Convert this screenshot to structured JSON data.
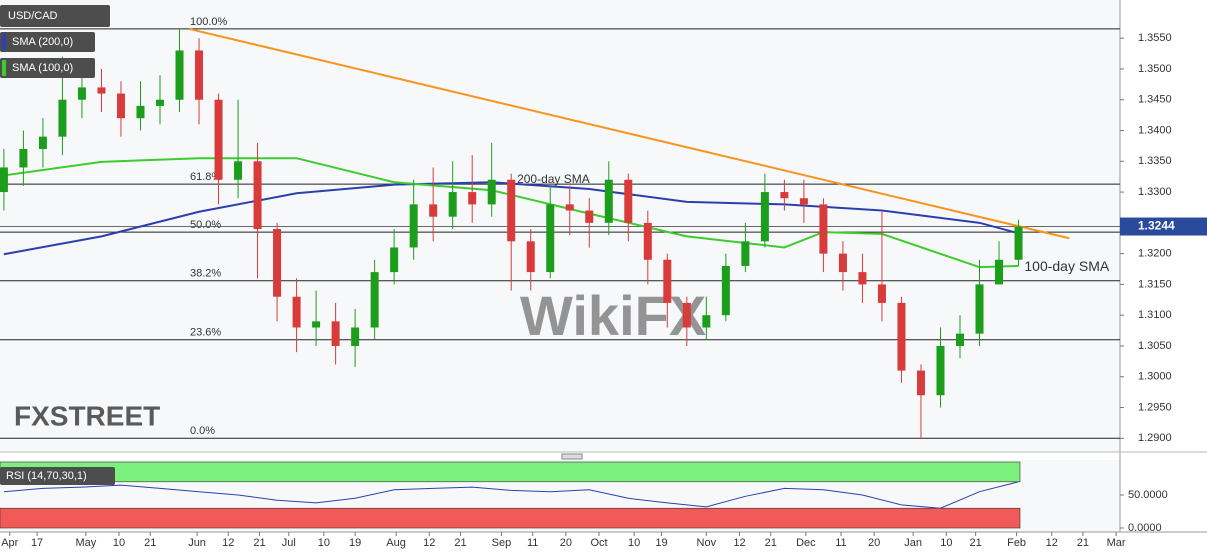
{
  "chart_data": {
    "type": "candlestick",
    "title": "USD/CAD",
    "candles": {
      "up_color": "#1c9e1c",
      "down_color": "#d93a3a",
      "open": [
        1.33,
        1.334,
        1.337,
        1.339,
        1.345,
        1.347,
        1.346,
        1.342,
        1.344,
        1.345,
        1.353,
        1.345,
        1.332,
        1.335,
        1.324,
        1.313,
        1.308,
        1.309,
        1.305,
        1.308,
        1.317,
        1.321,
        1.328,
        1.326,
        1.33,
        1.328,
        1.332,
        1.322,
        1.317,
        1.328,
        1.327,
        1.325,
        1.332,
        1.325,
        1.319,
        1.312,
        1.308,
        1.31,
        1.318,
        1.322,
        1.33,
        1.329,
        1.328,
        1.32,
        1.317,
        1.315,
        1.312,
        1.301,
        1.297,
        1.305,
        1.307,
        1.315,
        1.319
      ],
      "high": [
        1.337,
        1.34,
        1.342,
        1.352,
        1.35,
        1.35,
        1.348,
        1.348,
        1.349,
        1.3565,
        1.355,
        1.346,
        1.345,
        1.338,
        1.325,
        1.316,
        1.314,
        1.312,
        1.311,
        1.319,
        1.324,
        1.332,
        1.334,
        1.335,
        1.336,
        1.338,
        1.333,
        1.324,
        1.331,
        1.331,
        1.329,
        1.335,
        1.333,
        1.327,
        1.32,
        1.313,
        1.313,
        1.32,
        1.325,
        1.333,
        1.332,
        1.332,
        1.329,
        1.322,
        1.32,
        1.327,
        1.313,
        1.302,
        1.308,
        1.31,
        1.319,
        1.322,
        1.3255
      ],
      "low": [
        1.327,
        1.331,
        1.334,
        1.336,
        1.342,
        1.343,
        1.339,
        1.34,
        1.341,
        1.343,
        1.341,
        1.328,
        1.329,
        1.316,
        1.309,
        1.304,
        1.305,
        1.302,
        1.3016,
        1.306,
        1.315,
        1.319,
        1.322,
        1.324,
        1.325,
        1.326,
        1.314,
        1.314,
        1.316,
        1.323,
        1.321,
        1.323,
        1.322,
        1.315,
        1.308,
        1.305,
        1.306,
        1.309,
        1.317,
        1.321,
        1.327,
        1.325,
        1.317,
        1.314,
        1.312,
        1.309,
        1.299,
        1.29,
        1.295,
        1.303,
        1.305,
        1.316,
        1.318
      ],
      "close": [
        1.334,
        1.337,
        1.339,
        1.345,
        1.347,
        1.346,
        1.342,
        1.344,
        1.345,
        1.353,
        1.345,
        1.332,
        1.335,
        1.324,
        1.313,
        1.308,
        1.309,
        1.305,
        1.308,
        1.317,
        1.321,
        1.328,
        1.326,
        1.33,
        1.328,
        1.332,
        1.322,
        1.317,
        1.328,
        1.327,
        1.325,
        1.332,
        1.325,
        1.319,
        1.312,
        1.308,
        1.31,
        1.318,
        1.322,
        1.33,
        1.329,
        1.328,
        1.32,
        1.317,
        1.315,
        1.312,
        1.301,
        1.297,
        1.305,
        1.307,
        1.315,
        1.319,
        1.3244
      ]
    },
    "series": [
      {
        "name": "SMA (200,0)",
        "color": "#2d3fae",
        "x": [
          0,
          5,
          10,
          15,
          20,
          25,
          30,
          35,
          40,
          45,
          50,
          52
        ],
        "values": [
          1.3199,
          1.3228,
          1.3268,
          1.3298,
          1.3312,
          1.3316,
          1.3305,
          1.3284,
          1.328,
          1.327,
          1.325,
          1.3233
        ]
      },
      {
        "name": "SMA (100,0)",
        "color": "#3ccc2c",
        "x": [
          0,
          5,
          10,
          15,
          20,
          25,
          30,
          35,
          40,
          42,
          45,
          50,
          52
        ],
        "values": [
          1.3327,
          1.3349,
          1.3355,
          1.3355,
          1.3316,
          1.3303,
          1.3265,
          1.3228,
          1.321,
          1.3235,
          1.3232,
          1.3178,
          1.318
        ]
      }
    ],
    "annotations": [
      {
        "text": "200-day SMA",
        "color": "#4a5bd0"
      },
      {
        "text": "100-day SMA",
        "color": "#2bb52b"
      }
    ],
    "trendline": {
      "color": "#f7941d",
      "x": [
        9.5,
        54.6
      ],
      "values": [
        1.3565,
        1.3225
      ]
    },
    "fib_levels": [
      {
        "label": "100.0%",
        "value": 1.3565
      },
      {
        "label": "61.8%",
        "value": 1.3313
      },
      {
        "label": "50.0%",
        "value": 1.3235
      },
      {
        "label": "38.2%",
        "value": 1.3156
      },
      {
        "label": "23.6%",
        "value": 1.306
      },
      {
        "label": "0.0%",
        "value": 1.29
      }
    ],
    "last_price": 1.3244,
    "last_price_color": "#2a4b9b",
    "xlim": [
      -0.2,
      57.2
    ],
    "xticks": [
      {
        "value": 0.3,
        "label": "Apr"
      },
      {
        "value": 1.7,
        "label": "17"
      },
      {
        "value": 4.2,
        "label": "May"
      },
      {
        "value": 5.9,
        "label": "10"
      },
      {
        "value": 7.5,
        "label": "21"
      },
      {
        "value": 9.9,
        "label": "Jun"
      },
      {
        "value": 11.5,
        "label": "12"
      },
      {
        "value": 13.1,
        "label": "21"
      },
      {
        "value": 14.6,
        "label": "Jul"
      },
      {
        "value": 16.4,
        "label": "10"
      },
      {
        "value": 18.0,
        "label": "19"
      },
      {
        "value": 20.1,
        "label": "Aug"
      },
      {
        "value": 21.8,
        "label": "12"
      },
      {
        "value": 23.4,
        "label": "21"
      },
      {
        "value": 25.5,
        "label": "Sep"
      },
      {
        "value": 27.1,
        "label": "11"
      },
      {
        "value": 28.8,
        "label": "20"
      },
      {
        "value": 30.5,
        "label": "Oct"
      },
      {
        "value": 32.3,
        "label": "10"
      },
      {
        "value": 33.7,
        "label": "19"
      },
      {
        "value": 36.0,
        "label": "Nov"
      },
      {
        "value": 37.7,
        "label": "12"
      },
      {
        "value": 39.3,
        "label": "21"
      },
      {
        "value": 41.1,
        "label": "Dec"
      },
      {
        "value": 42.9,
        "label": "11"
      },
      {
        "value": 44.6,
        "label": "20"
      },
      {
        "value": 46.6,
        "label": "Jan"
      },
      {
        "value": 48.3,
        "label": "10"
      },
      {
        "value": 49.8,
        "label": "21"
      },
      {
        "value": 51.9,
        "label": "Feb"
      },
      {
        "value": 53.7,
        "label": "12"
      },
      {
        "value": 55.3,
        "label": "21"
      },
      {
        "value": 57.0,
        "label": "Mar"
      }
    ],
    "ylim": [
      1.2881,
      1.3612
    ],
    "yticks": [
      {
        "value": 1.29,
        "label": "1.2900"
      },
      {
        "value": 1.295,
        "label": "1.2950"
      },
      {
        "value": 1.3,
        "label": "1.3000"
      },
      {
        "value": 1.305,
        "label": "1.3050"
      },
      {
        "value": 1.31,
        "label": "1.3100"
      },
      {
        "value": 1.315,
        "label": "1.3150"
      },
      {
        "value": 1.32,
        "label": "1.3200"
      },
      {
        "value": 1.325,
        "label": "1.3250"
      },
      {
        "value": 1.33,
        "label": "1.3300"
      },
      {
        "value": 1.335,
        "label": "1.3350"
      },
      {
        "value": 1.34,
        "label": "1.3400"
      },
      {
        "value": 1.345,
        "label": "1.3450"
      },
      {
        "value": 1.35,
        "label": "1.3500"
      },
      {
        "value": 1.355,
        "label": "1.3550"
      }
    ],
    "rsi": {
      "label": "RSI (14,70,30,1)",
      "color": "#2d3fae",
      "overbought": 70,
      "oversold": 30,
      "overbought_color": "#7cf07c",
      "oversold_color": "#f25a5a",
      "x": [
        0,
        2,
        4,
        6,
        8,
        10,
        12,
        14,
        16,
        18,
        20,
        22,
        24,
        26,
        28,
        30,
        32,
        34,
        36,
        38,
        40,
        42,
        44,
        46,
        48,
        50,
        52
      ],
      "values": [
        55,
        60,
        62,
        65,
        60,
        55,
        50,
        42,
        38,
        45,
        58,
        60,
        62,
        57,
        55,
        58,
        45,
        38,
        32,
        48,
        60,
        58,
        50,
        35,
        30,
        55,
        70
      ],
      "ylim": [
        0,
        100
      ],
      "yticks": [
        {
          "value": 50,
          "label": "50.0000"
        },
        {
          "value": 0,
          "label": "0.0000"
        }
      ]
    },
    "watermarks": [
      "FXSTREET",
      "WikiFX"
    ]
  }
}
